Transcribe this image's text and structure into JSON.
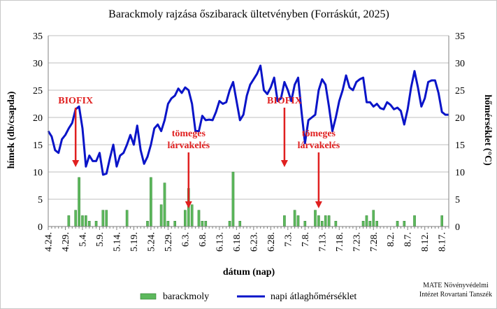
{
  "chart_data": {
    "type": "bar+line",
    "title": "Barackmoly rajzása őszibarack ültetvényben (Forráskút, 2025)",
    "xlabel": "dátum (nap)",
    "ylabel_left": "hímek (db/csapda)",
    "ylabel_right": "hőmérséklet (°C)",
    "ylim_left": [
      0,
      35
    ],
    "ylim_right": [
      0,
      35
    ],
    "yticks": [
      "0",
      "5",
      "10",
      "15",
      "20",
      "25",
      "30",
      "35"
    ],
    "xlim_day_index": [
      0,
      117
    ],
    "xtick_labels": [
      "4.24.",
      "4.29.",
      "5.4.",
      "5.9.",
      "5.14.",
      "5.19.",
      "5.24.",
      "5.29.",
      "6.3.",
      "6.8.",
      "6.13.",
      "6.18.",
      "6.23.",
      "6.28.",
      "7.3.",
      "7.8.",
      "7.13.",
      "7.18.",
      "7.23.",
      "7.28.",
      "8.2.",
      "8.7.",
      "8.12.",
      "8.17."
    ],
    "grid": "horizontal",
    "legend_position": "bottom",
    "series": [
      {
        "name": "barackmoly",
        "type": "bar",
        "color": "#5cb85c",
        "x_day_index": [
          6,
          8,
          9,
          10,
          11,
          12,
          14,
          16,
          17,
          23,
          29,
          30,
          33,
          34,
          35,
          37,
          40,
          41,
          42,
          44,
          45,
          46,
          53,
          54,
          56,
          69,
          72,
          73,
          75,
          78,
          79,
          80,
          81,
          82,
          84,
          92,
          93,
          94,
          95,
          96,
          102,
          104,
          107,
          115
        ],
        "values": [
          2,
          3,
          9,
          2,
          2,
          1,
          1,
          3,
          3,
          3,
          1,
          9,
          4,
          8,
          1,
          1,
          3,
          7,
          4,
          3,
          1,
          1,
          1,
          10,
          1,
          2,
          3,
          2,
          1,
          3,
          2,
          1,
          2,
          2,
          1,
          1,
          2,
          1,
          3,
          1,
          1,
          1,
          2,
          2
        ]
      },
      {
        "name": "napi átlaghőmérséklet",
        "type": "line",
        "color": "#0a14c8",
        "x_day_index": [
          0,
          1,
          2,
          3,
          4,
          5,
          6,
          7,
          8,
          9,
          10,
          11,
          12,
          13,
          14,
          15,
          16,
          17,
          18,
          19,
          20,
          21,
          22,
          23,
          24,
          25,
          26,
          27,
          28,
          29,
          30,
          31,
          32,
          33,
          34,
          35,
          36,
          37,
          38,
          39,
          40,
          41,
          42,
          43,
          44,
          45,
          46,
          47,
          48,
          49,
          50,
          51,
          52,
          53,
          54,
          55,
          56,
          57,
          58,
          59,
          60,
          61,
          62,
          63,
          64,
          65,
          66,
          67,
          68,
          69,
          70,
          71,
          72,
          73,
          74,
          75,
          76,
          77,
          78,
          79,
          80,
          81,
          82,
          83,
          84,
          85,
          86,
          87,
          88,
          89,
          90,
          91,
          92,
          93,
          94,
          95,
          96,
          97,
          98,
          99,
          100,
          101,
          102,
          103,
          104,
          105,
          106,
          107,
          108,
          109,
          110,
          111,
          112,
          113,
          114,
          115,
          116,
          117
        ],
        "values": [
          17.5,
          16.5,
          14,
          13.5,
          16,
          16.8,
          18,
          19,
          21.5,
          22,
          18,
          11,
          13,
          12,
          12,
          13.5,
          9.5,
          9.7,
          12.5,
          15,
          11,
          13,
          13.5,
          15,
          16.8,
          15,
          18.5,
          14,
          11.5,
          12.8,
          15,
          18,
          18.7,
          17.5,
          19.5,
          22.5,
          23.5,
          24,
          25.3,
          24.5,
          25.5,
          25,
          22.5,
          17.5,
          17.5,
          20.3,
          19.5,
          19.6,
          19.5,
          21,
          23,
          22.5,
          22.8,
          25,
          26.5,
          23,
          19.5,
          20.5,
          24,
          26,
          27,
          28,
          29.5,
          25,
          24.3,
          25.5,
          27.3,
          23,
          23.5,
          26.5,
          25,
          23,
          26,
          27.3,
          21,
          15.3,
          19.5,
          20,
          20.5,
          25,
          27,
          26,
          22,
          17.5,
          20,
          23,
          25,
          27.7,
          25.5,
          25,
          26.5,
          27,
          27.3,
          22.8,
          22.8,
          22,
          22.5,
          21.7,
          21.5,
          22.8,
          22.3,
          21.5,
          21.8,
          21.2,
          18.7,
          21.5,
          25.5,
          28.5,
          25.5,
          22,
          23.5,
          26.5,
          26.8,
          26.8,
          24.5,
          21,
          20.5,
          20.5
        ]
      }
    ],
    "annotations": [
      {
        "text": "BIOFIX",
        "color": "#e02020",
        "x_day_index": 8
      },
      {
        "text": "tömeges\nlárvakelés",
        "color": "#e02020",
        "x_day_index": 41
      },
      {
        "text": "BIOFIX",
        "color": "#e02020",
        "x_day_index": 69
      },
      {
        "text": "tömeges\nlárvakelés",
        "color": "#e02020",
        "x_day_index": 79
      }
    ]
  },
  "credit": {
    "line1": "MATE Növényvédelmi",
    "line2": "Intézet Rovartani Tanszék"
  }
}
